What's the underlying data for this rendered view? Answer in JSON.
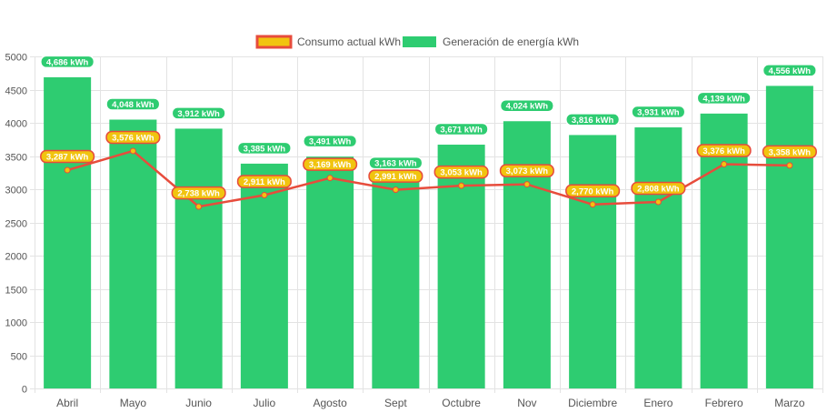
{
  "chart_data": {
    "type": "bar",
    "categories": [
      "Abril",
      "Mayo",
      "Junio",
      "Julio",
      "Agosto",
      "Sept",
      "Octubre",
      "Nov",
      "Diciembre",
      "Enero",
      "Febrero",
      "Marzo"
    ],
    "ylim": [
      0,
      5000
    ],
    "yticks": [
      0,
      500,
      1000,
      1500,
      2000,
      2500,
      3000,
      3500,
      4000,
      4500,
      5000
    ],
    "grid": true,
    "legend_position": "top-center",
    "series": [
      {
        "name": "Consumo actual kWh",
        "type": "line",
        "color": "#e74c3c",
        "point_color": "#f1c40f",
        "values": [
          3287,
          3576,
          2738,
          2911,
          3169,
          2991,
          3053,
          3073,
          2770,
          2808,
          3376,
          3358
        ],
        "labels": [
          "3,287 kWh",
          "3,576 kWh",
          "2,738 kWh",
          "2,911 kWh",
          "3,169 kWh",
          "2,991 kWh",
          "3,053 kWh",
          "3,073 kWh",
          "2,770 kWh",
          "2,808 kWh",
          "3,376 kWh",
          "3,358 kWh"
        ]
      },
      {
        "name": "Generación de energía kWh",
        "type": "bar",
        "color": "#2ecc71",
        "values": [
          4686,
          4048,
          3912,
          3385,
          3491,
          3163,
          3671,
          4024,
          3816,
          3931,
          4139,
          4556
        ],
        "labels": [
          "4,686 kWh",
          "4,048 kWh",
          "3,912 kWh",
          "3,385 kWh",
          "3,491 kWh",
          "3,163 kWh",
          "3,671 kWh",
          "4,024 kWh",
          "3,816 kWh",
          "3,931 kWh",
          "4,139 kWh",
          "4,556 kWh"
        ]
      }
    ]
  }
}
